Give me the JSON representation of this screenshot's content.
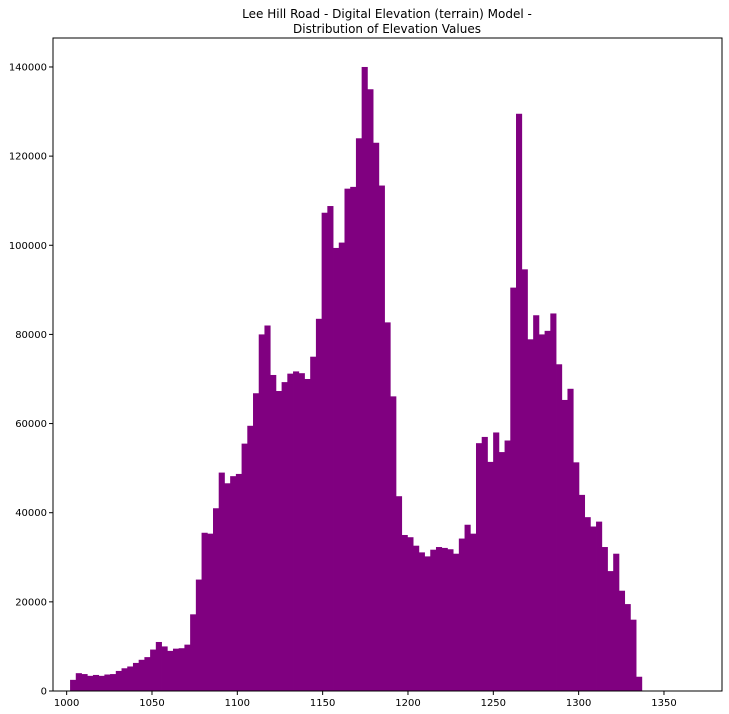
{
  "chart_data": {
    "type": "bar",
    "title_lines": [
      "Lee Hill Road - Digital Elevation (terrain) Model -",
      "Distribution of Elevation Values"
    ],
    "xlabel": "",
    "ylabel": "",
    "xlim": [
      992,
      1384
    ],
    "ylim": [
      0,
      146500
    ],
    "x_ticks": [
      1000,
      1050,
      1100,
      1150,
      1200,
      1250,
      1300,
      1350
    ],
    "y_ticks": [
      0,
      20000,
      40000,
      60000,
      80000,
      100000,
      120000,
      140000
    ],
    "grid": false,
    "bar_color": "#800080",
    "bin_start": 1002,
    "bin_width": 3.35,
    "values": [
      2500,
      4000,
      3800,
      3400,
      3600,
      3400,
      3700,
      3800,
      4500,
      5100,
      5500,
      6300,
      7000,
      7600,
      9300,
      11000,
      10000,
      9000,
      9500,
      9600,
      10400,
      17200,
      25000,
      35500,
      35300,
      41000,
      49000,
      46600,
      48200,
      48700,
      55500,
      59500,
      66800,
      80000,
      82000,
      70900,
      67300,
      69300,
      71200,
      71700,
      71300,
      70000,
      75000,
      83500,
      107300,
      108800,
      99400,
      100600,
      112700,
      113100,
      124000,
      140000,
      135000,
      123000,
      113400,
      82700,
      66100,
      43700,
      35000,
      34500,
      32600,
      31100,
      30200,
      31700,
      32300,
      32100,
      31800,
      30800,
      34200,
      37300,
      35300,
      55600,
      57000,
      51400,
      58000,
      53600,
      56200,
      90500,
      129500,
      94600,
      78900,
      84300,
      80000,
      80800,
      84700,
      73300,
      65300,
      67800,
      51300,
      44000,
      39000,
      36900,
      38000,
      32300,
      26900,
      30800,
      22500,
      19500,
      16000,
      3200
    ]
  }
}
